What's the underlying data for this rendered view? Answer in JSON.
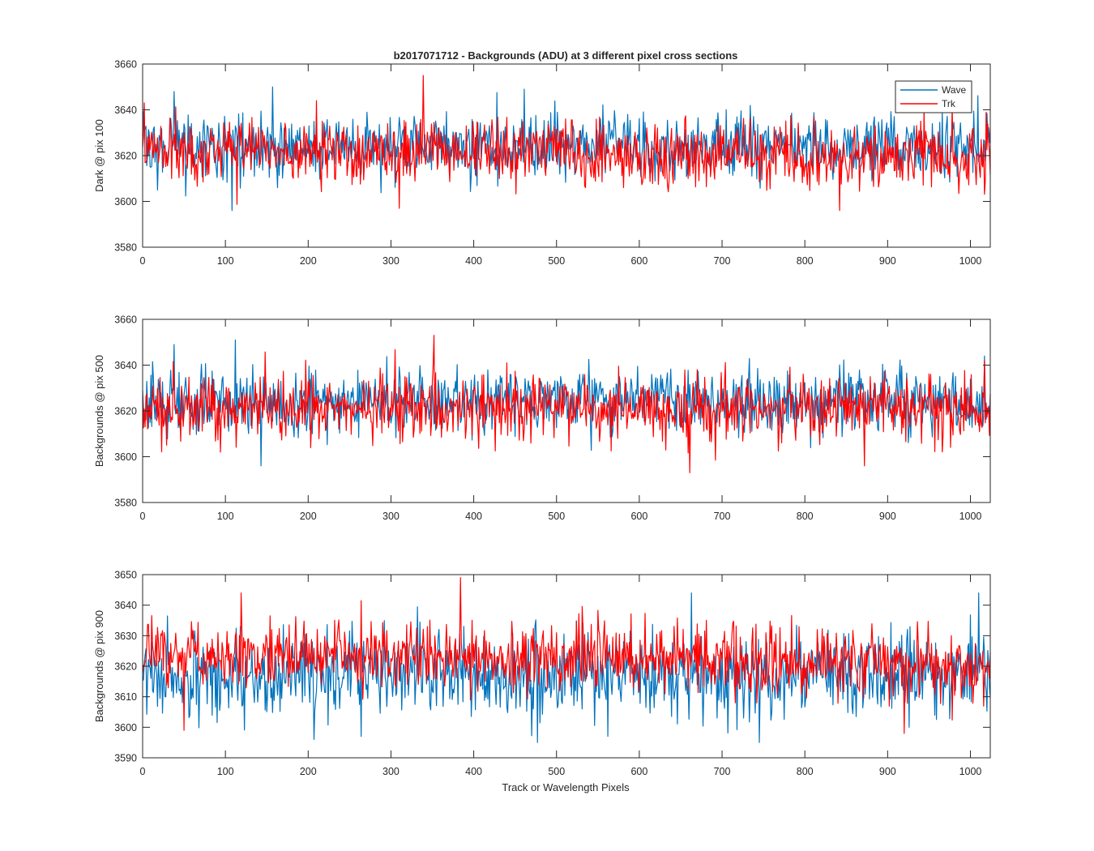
{
  "figure": {
    "title": "b2017071712 - Backgrounds (ADU) at 3 different pixel cross sections",
    "xlabel": "Track or Wavelength Pixels"
  },
  "legend": {
    "placement": "top-right (top subplot)",
    "items": [
      {
        "label": "Wave",
        "color": "#0072BD"
      },
      {
        "label": "Trk",
        "color": "#FF0000"
      }
    ]
  },
  "chart_data": [
    {
      "type": "line",
      "ylabel": "Dark @ pix 100",
      "xlim": [
        0,
        1024
      ],
      "ylim": [
        3580,
        3660
      ],
      "xticks": [
        "0",
        "100",
        "200",
        "300",
        "400",
        "500",
        "600",
        "700",
        "800",
        "900",
        "1000"
      ],
      "yticks": [
        "3580",
        "3600",
        "3620",
        "3640",
        "3660"
      ],
      "grid": false,
      "series": [
        {
          "name": "Wave",
          "color": "#0072BD",
          "mean": 3624,
          "noise": 7,
          "min": 3596,
          "max": 3650,
          "peaks": [
            [
              108,
              3596
            ],
            [
              157,
              3650
            ],
            [
              461,
              3649
            ],
            [
              18,
              3605
            ],
            [
              38,
              3648
            ]
          ]
        },
        {
          "name": "Trk",
          "color": "#FF0000",
          "mean": 3623,
          "noise": 7,
          "trend_end": 3619,
          "min": 3596,
          "max": 3655,
          "peaks": [
            [
              339,
              3655
            ],
            [
              310,
              3597
            ],
            [
              842,
              3596
            ],
            [
              2,
              3643
            ],
            [
              210,
              3644
            ]
          ]
        }
      ]
    },
    {
      "type": "line",
      "ylabel": "Backgrounds @ pix 500",
      "xlim": [
        0,
        1024
      ],
      "ylim": [
        3580,
        3660
      ],
      "xticks": [
        "0",
        "100",
        "200",
        "300",
        "400",
        "500",
        "600",
        "700",
        "800",
        "900",
        "1000"
      ],
      "yticks": [
        "3580",
        "3600",
        "3620",
        "3640",
        "3660"
      ],
      "grid": false,
      "series": [
        {
          "name": "Wave",
          "color": "#0072BD",
          "mean": 3624,
          "noise": 7,
          "min": 3596,
          "max": 3651,
          "peaks": [
            [
              112,
              3651
            ],
            [
              143,
              3596
            ],
            [
              38,
              3649
            ],
            [
              1017,
              3644
            ]
          ]
        },
        {
          "name": "Trk",
          "color": "#FF0000",
          "mean": 3623,
          "noise": 7,
          "trend_end": 3620,
          "min": 3593,
          "max": 3653,
          "peaks": [
            [
              352,
              3653
            ],
            [
              661,
              3593
            ],
            [
              872,
              3596
            ],
            [
              1017,
              3642
            ],
            [
              94,
              3602
            ]
          ]
        }
      ]
    },
    {
      "type": "line",
      "ylabel": "Backgrounds @ pix 900",
      "xlim": [
        0,
        1024
      ],
      "ylim": [
        3590,
        3650
      ],
      "xticks": [
        "0",
        "100",
        "200",
        "300",
        "400",
        "500",
        "600",
        "700",
        "800",
        "900",
        "1000"
      ],
      "yticks": [
        "3590",
        "3600",
        "3610",
        "3620",
        "3630",
        "3640",
        "3650"
      ],
      "grid": false,
      "series": [
        {
          "name": "Wave",
          "color": "#0072BD",
          "mean": 3617,
          "noise": 7,
          "min": 3595,
          "max": 3644,
          "peaks": [
            [
              207,
              3596
            ],
            [
              477,
              3595
            ],
            [
              663,
              3644
            ],
            [
              1010,
              3644
            ],
            [
              745,
              3595
            ]
          ]
        },
        {
          "name": "Trk",
          "color": "#FF0000",
          "mean": 3624,
          "noise": 5.5,
          "trend_end": 3621,
          "min": 3598,
          "max": 3649,
          "peaks": [
            [
              384,
              3649
            ],
            [
              50,
              3599
            ],
            [
              920,
              3598
            ],
            [
              119,
              3644
            ]
          ]
        }
      ]
    }
  ]
}
